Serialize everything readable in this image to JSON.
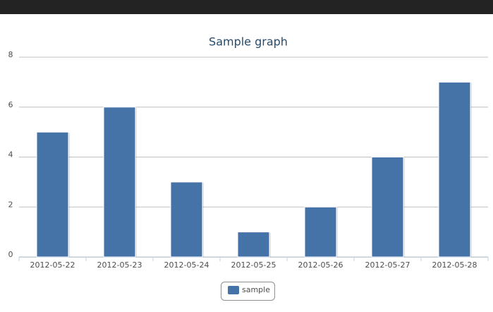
{
  "chart_data": {
    "type": "bar",
    "title": "Sample graph",
    "categories": [
      "2012-05-22",
      "2012-05-23",
      "2012-05-24",
      "2012-05-25",
      "2012-05-26",
      "2012-05-27",
      "2012-05-28"
    ],
    "series": [
      {
        "name": "sample",
        "color": "#4572a7",
        "values": [
          5,
          6,
          3,
          1,
          2,
          4,
          7
        ]
      }
    ],
    "ylim": [
      0,
      8
    ],
    "yticks": [
      0,
      2,
      4,
      6,
      8
    ],
    "grid": true,
    "legend": "bottom"
  }
}
